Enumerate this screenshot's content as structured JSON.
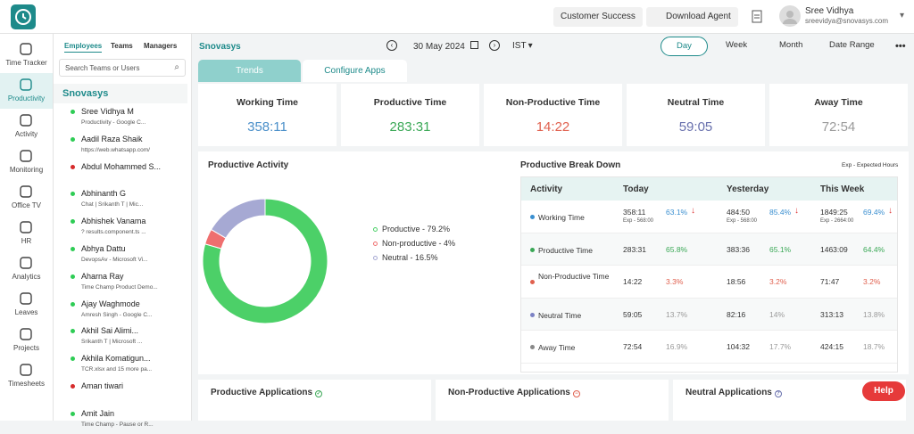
{
  "header": {
    "buttons": [
      "Customer Success",
      "Download Agent"
    ],
    "user_name": "Sree Vidhya",
    "user_email": "sreevidya@snovasys.com"
  },
  "nav": [
    "Time Tracker",
    "Productivity",
    "Activity",
    "Monitoring",
    "Office TV",
    "HR",
    "Analytics",
    "Leaves",
    "Projects",
    "Timesheets"
  ],
  "nav_active": 1,
  "sidebar": {
    "tabs": [
      "Employees",
      "Teams",
      "Managers"
    ],
    "search_placeholder": "Search Teams or Users",
    "org": "Snovasys",
    "employees": [
      {
        "name": "Sree Vidhya M",
        "detail": "Productivity - Google C...",
        "status_color": "#2ecc55"
      },
      {
        "name": "Aadil Raza Shaik",
        "detail": "https://web.whatsapp.com/",
        "status_color": "#2ecc55"
      },
      {
        "name": "Abdul Mohammed S...",
        "status_color": "#d62b2b"
      },
      {
        "name": "Abhinanth G",
        "detail": "Chat | Srikanth T | Mic...",
        "status_color": "#2ecc55"
      },
      {
        "name": "Abhishek Vanama",
        "detail": "? results.component.ts ...",
        "status_color": "#2ecc55"
      },
      {
        "name": "Abhya Dattu",
        "detail": "DevopsAv - Microsoft Vi...",
        "status_color": "#2ecc55"
      },
      {
        "name": "Aharna Ray",
        "detail": "Time Champ Product Demo...",
        "status_color": "#2ecc55"
      },
      {
        "name": "Ajay Waghmode",
        "detail": "Amresh Singh - Google C...",
        "status_color": "#2ecc55"
      },
      {
        "name": "Akhil Sai Alimi...",
        "detail": "Srikanth T | Microsoft ...",
        "status_color": "#2ecc55"
      },
      {
        "name": "Akhila Komatigun...",
        "detail": "TCR.xlsx and 15 more pa...",
        "status_color": "#2ecc55"
      },
      {
        "name": "Aman tiwari",
        "status_color": "#d62b2b"
      },
      {
        "name": "Amit Jain",
        "detail": "Time Champ - Pause or R...",
        "status_color": "#2ecc55"
      }
    ]
  },
  "toolbar": {
    "org": "Snovasys",
    "date": "30 May 2024",
    "timezone": "IST",
    "ranges": [
      "Day",
      "Week",
      "Month",
      "Date Range"
    ],
    "active_range": 0
  },
  "tabs": [
    "Trends",
    "Configure Apps"
  ],
  "cards": [
    {
      "label": "Working Time",
      "value": "358:11",
      "color": "#4a8fc9"
    },
    {
      "label": "Productive Time",
      "value": "283:31",
      "color": "#3aa856"
    },
    {
      "label": "Non-Productive Time",
      "value": "14:22",
      "color": "#e0604e"
    },
    {
      "label": "Neutral Time",
      "value": "59:05",
      "color": "#6870ad"
    },
    {
      "label": "Away Time",
      "value": "72:54",
      "color": "#9a9a9a"
    }
  ],
  "activity": {
    "title": "Productive Activity",
    "chart_data": {
      "type": "donut",
      "categories": [
        "Productive",
        "Non-productive",
        "Neutral"
      ],
      "values": [
        79.2,
        4,
        16.5
      ],
      "value_labels": [
        "Productive - 79.2%",
        "Non-productive - 4%",
        "Neutral - 16.5%"
      ],
      "colors": [
        "#4cd068",
        "#ef6f6f",
        "#a6a9d3"
      ]
    }
  },
  "breakdown": {
    "title": "Productive Break Down",
    "note": "Exp - Expected Hours",
    "columns": [
      "Activity",
      "Today",
      "Yesterday",
      "This Week"
    ],
    "rows": [
      {
        "label": "Working Time",
        "color": "#3a8fd0",
        "pct_color": "#3a8fd0",
        "cells": [
          {
            "time": "358:11",
            "exp": "Exp - 568:00",
            "pct": "63.1%",
            "trend": "↓"
          },
          {
            "time": "484:50",
            "exp": "Exp - 568:00",
            "pct": "85.4%",
            "trend": "↓"
          },
          {
            "time": "1849:25",
            "exp": "Exp - 2664:00",
            "pct": "69.4%",
            "trend": "↓"
          }
        ]
      },
      {
        "label": "Productive Time",
        "color": "#3aa856",
        "pct_color": "#3aa856",
        "cells": [
          {
            "time": "283:31",
            "pct": "65.8%"
          },
          {
            "time": "383:36",
            "pct": "65.1%"
          },
          {
            "time": "1463:09",
            "pct": "64.4%"
          }
        ]
      },
      {
        "label": "Non-Productive Time",
        "color": "#e0604e",
        "pct_color": "#e0604e",
        "cells": [
          {
            "time": "14:22",
            "pct": "3.3%"
          },
          {
            "time": "18:56",
            "pct": "3.2%"
          },
          {
            "time": "71:47",
            "pct": "3.2%"
          }
        ]
      },
      {
        "label": "Neutral Time",
        "color": "#7b82c4",
        "pct_color": "#9a9a9a",
        "cells": [
          {
            "time": "59:05",
            "pct": "13.7%"
          },
          {
            "time": "82:16",
            "pct": "14%"
          },
          {
            "time": "313:13",
            "pct": "13.8%"
          }
        ]
      },
      {
        "label": "Away Time",
        "color": "#888888",
        "pct_color": "#9a9a9a",
        "cells": [
          {
            "time": "72:54",
            "pct": "16.9%"
          },
          {
            "time": "104:32",
            "pct": "17.7%"
          },
          {
            "time": "424:15",
            "pct": "18.7%"
          }
        ]
      }
    ]
  },
  "applications": [
    "Productive Applications",
    "Non-Productive Applications",
    "Neutral Applications"
  ],
  "help": "Help"
}
